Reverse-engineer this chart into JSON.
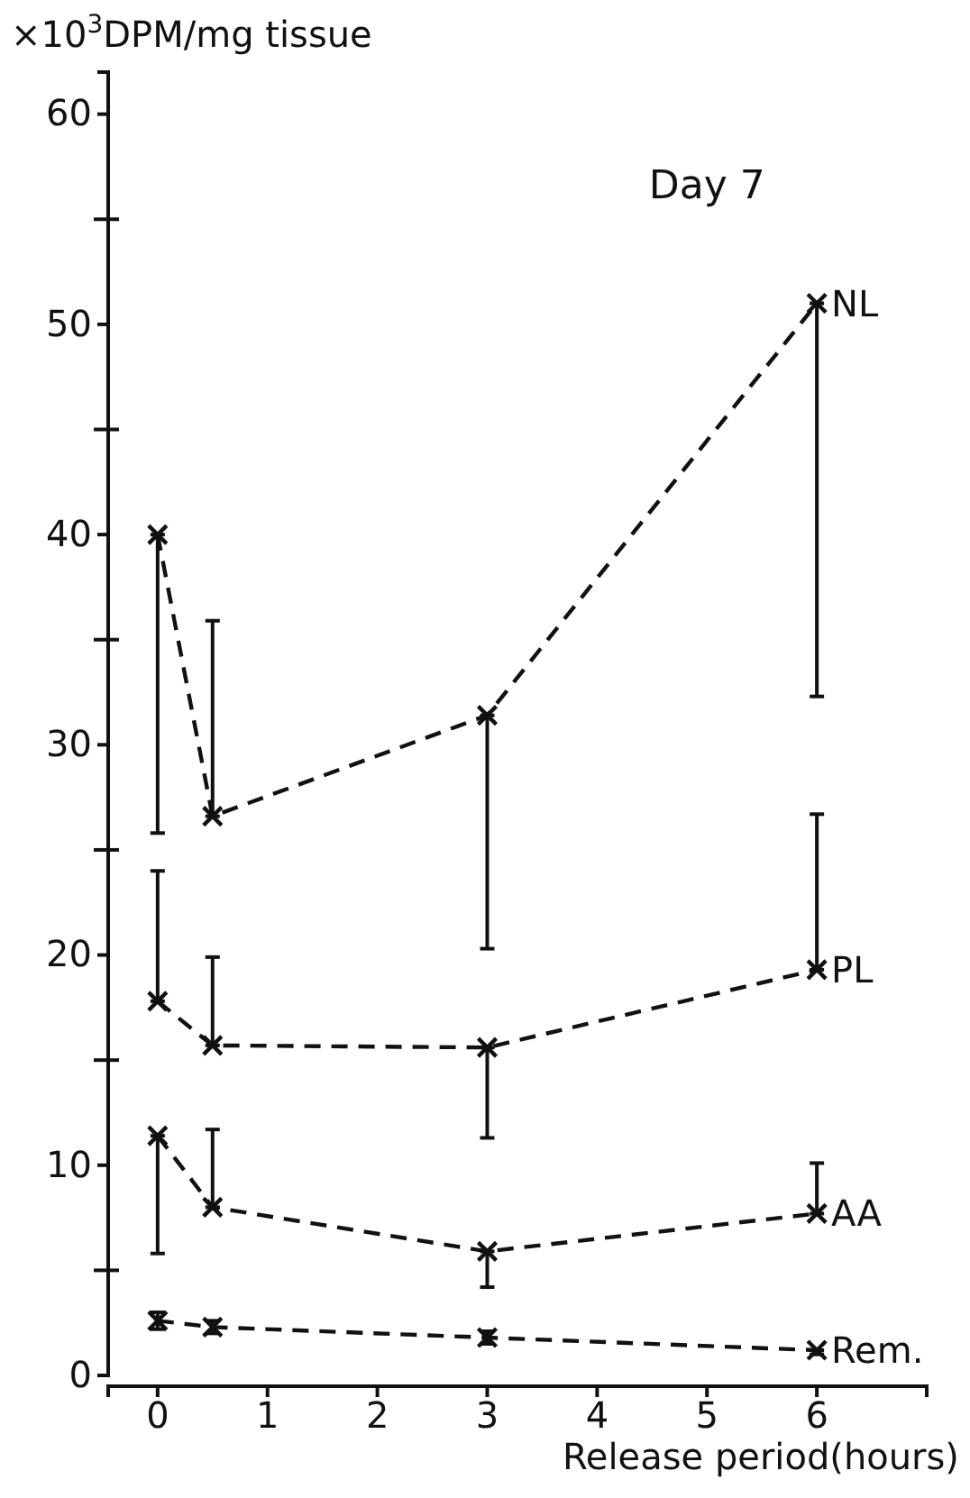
{
  "chart_data": {
    "type": "line",
    "title": "Day 7",
    "xlabel": "Release period(hours)",
    "ylabel": "×10$^{3}$DPM/mg tissue",
    "x": [
      0,
      0.5,
      3,
      6
    ],
    "xlim": [
      -0.45,
      7
    ],
    "xticks": [
      0,
      1,
      2,
      3,
      4,
      5,
      6
    ],
    "ylim": [
      0,
      62
    ],
    "yticks": [
      0,
      {
        "value": 5,
        "label": null
      },
      10,
      {
        "value": 15,
        "label": null
      },
      20,
      {
        "value": 25,
        "label": null
      },
      30,
      {
        "value": 35,
        "label": null
      },
      40,
      {
        "value": 45,
        "label": null
      },
      50,
      {
        "value": 55,
        "label": null
      },
      60
    ],
    "grid": false,
    "legend": false,
    "marker": "cross",
    "line_style": "dashed",
    "series": [
      {
        "name": "NL",
        "color": "#111111",
        "values": [
          40,
          26.6,
          31.4,
          51.0
        ],
        "errors": [
          [
            25.8,
            40
          ],
          [
            26.6,
            35.9
          ],
          [
            20.3,
            31.4
          ],
          [
            32.3,
            51.0
          ]
        ]
      },
      {
        "name": "PL",
        "color": "#111111",
        "values": [
          17.8,
          15.7,
          15.6,
          19.3
        ],
        "errors": [
          [
            17.8,
            24.0
          ],
          [
            15.7,
            19.9
          ],
          [
            11.3,
            15.6
          ],
          [
            19.3,
            26.7
          ]
        ]
      },
      {
        "name": "AA",
        "color": "#111111",
        "values": [
          11.4,
          8.0,
          5.9,
          7.7
        ],
        "errors": [
          [
            5.8,
            11.4
          ],
          [
            8.0,
            11.7
          ],
          [
            4.2,
            5.9
          ],
          [
            7.7,
            10.1
          ]
        ]
      },
      {
        "name": "Rem.",
        "color": "#111111",
        "values": [
          2.6,
          2.3,
          1.8,
          1.2
        ],
        "errors": [
          [
            2.2,
            3.0
          ],
          [
            2.0,
            2.6
          ],
          [
            1.5,
            2.1
          ],
          [
            1.0,
            1.2
          ]
        ]
      }
    ]
  }
}
